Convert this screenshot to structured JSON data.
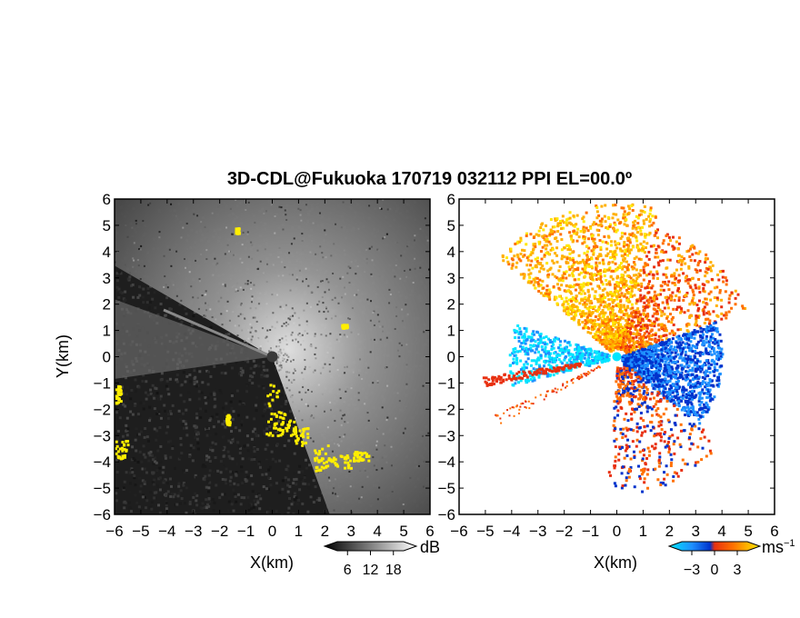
{
  "title": "3D-CDL@Fukuoka 170719 032112 PPI EL=00.0º",
  "chart_data": [
    {
      "type": "heatmap",
      "name": "backscatter-intensity-ppi",
      "xlabel": "X(km)",
      "ylabel": "Y(km)",
      "xlim": [
        -6,
        6
      ],
      "ylim": [
        -6,
        6
      ],
      "xticks": [
        "−6",
        "−5",
        "−4",
        "−3",
        "−2",
        "−1",
        "0",
        "1",
        "2",
        "3",
        "4",
        "5",
        "6"
      ],
      "yticks": [
        "6",
        "5",
        "4",
        "3",
        "2",
        "1",
        "0",
        "−1",
        "−2",
        "−3",
        "−4",
        "−5",
        "−6"
      ],
      "grid": false,
      "colorbar": {
        "unit": "dB",
        "ticks": [
          "6",
          "12",
          "18"
        ],
        "tick_values": [
          6,
          12,
          18
        ],
        "range": [
          0,
          24
        ],
        "colormap": "gray"
      },
      "overlay_color": "#ffee00",
      "background_color": "#1e1e1e"
    },
    {
      "type": "heatmap",
      "name": "doppler-velocity-ppi",
      "xlabel": "X(km)",
      "ylabel": "",
      "xlim": [
        -6,
        6
      ],
      "ylim": [
        -6,
        6
      ],
      "xticks": [
        "−6",
        "−5",
        "−4",
        "−3",
        "−2",
        "−1",
        "0",
        "1",
        "2",
        "3",
        "4",
        "5",
        "6"
      ],
      "yticks": [
        "6",
        "5",
        "4",
        "3",
        "2",
        "1",
        "0",
        "−1",
        "−2",
        "−3",
        "−4",
        "−5",
        "−6"
      ],
      "grid": false,
      "colorbar": {
        "unit": "ms",
        "unit_exponent": "−1",
        "ticks": [
          "−3",
          "0",
          "3"
        ],
        "tick_values": [
          -3,
          0,
          3
        ],
        "range": [
          -6,
          6
        ],
        "colors": [
          "#00e5ff",
          "#1e90ff",
          "#0033cc",
          "#e83010",
          "#ff7000",
          "#ffb000",
          "#ffe600"
        ]
      },
      "background_color": "#ffffff"
    }
  ]
}
